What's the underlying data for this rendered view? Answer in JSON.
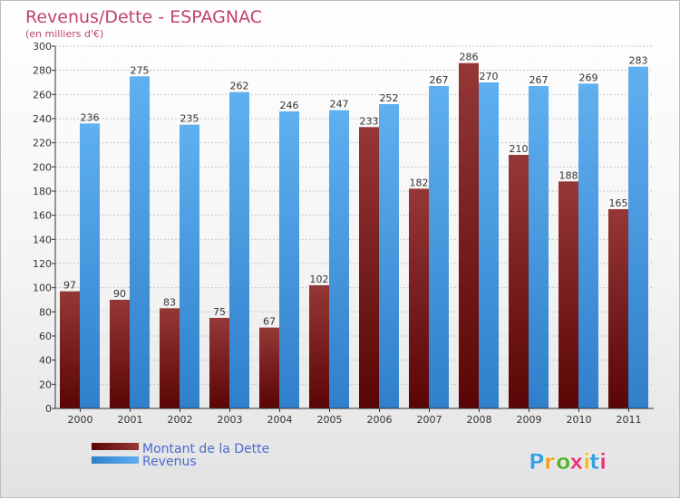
{
  "chart_data": {
    "type": "bar",
    "title": "Revenus/Dette - ESPAGNAC",
    "subtitle": "(en milliers d'€)",
    "categories": [
      "2000",
      "2001",
      "2002",
      "2003",
      "2004",
      "2005",
      "2006",
      "2007",
      "2008",
      "2009",
      "2010",
      "2011"
    ],
    "series": [
      {
        "name": "Montant de la Dette",
        "color": "#7a1414",
        "values": [
          97,
          90,
          83,
          75,
          67,
          102,
          233,
          182,
          286,
          210,
          188,
          165
        ]
      },
      {
        "name": "Revenus",
        "color": "#4a9ee6",
        "values": [
          236,
          275,
          235,
          262,
          246,
          247,
          252,
          267,
          270,
          267,
          269,
          283
        ]
      }
    ],
    "ylim": [
      0,
      300
    ],
    "yticks": [
      0,
      20,
      40,
      60,
      80,
      100,
      120,
      140,
      160,
      180,
      200,
      220,
      240,
      260,
      280,
      300
    ],
    "grid": true,
    "legend_position": "bottom-left"
  },
  "logo": {
    "text": "Proxiti"
  }
}
